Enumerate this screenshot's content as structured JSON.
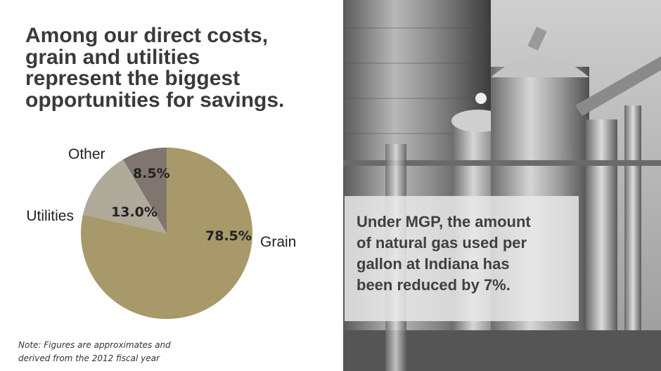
{
  "headline": {
    "lines": [
      "Among our direct costs,",
      "grain and utilities",
      "represent the biggest",
      "opportunities for savings."
    ]
  },
  "chart_data": {
    "type": "pie",
    "slices": [
      {
        "category": "Grain",
        "value": 78.5,
        "label": "78.5%",
        "color": "#a8996a"
      },
      {
        "category": "Utilities",
        "value": 13.0,
        "label": "13.0%",
        "color": "#b0aa9a"
      },
      {
        "category": "Other",
        "value": 8.5,
        "label": "8.5%",
        "color": "#817570"
      }
    ],
    "start": "top, clockwise from Grain",
    "colors": {
      "label_text": "#222222",
      "category_text": "#222222"
    }
  },
  "note": {
    "lines": [
      "Note: Figures are approximates and",
      "derived from the 2012 fiscal year"
    ]
  },
  "callout": {
    "lines": [
      "Under MGP, the amount",
      "of natural gas used per",
      "gallon at Indiana has",
      "been reduced by 7%."
    ]
  }
}
